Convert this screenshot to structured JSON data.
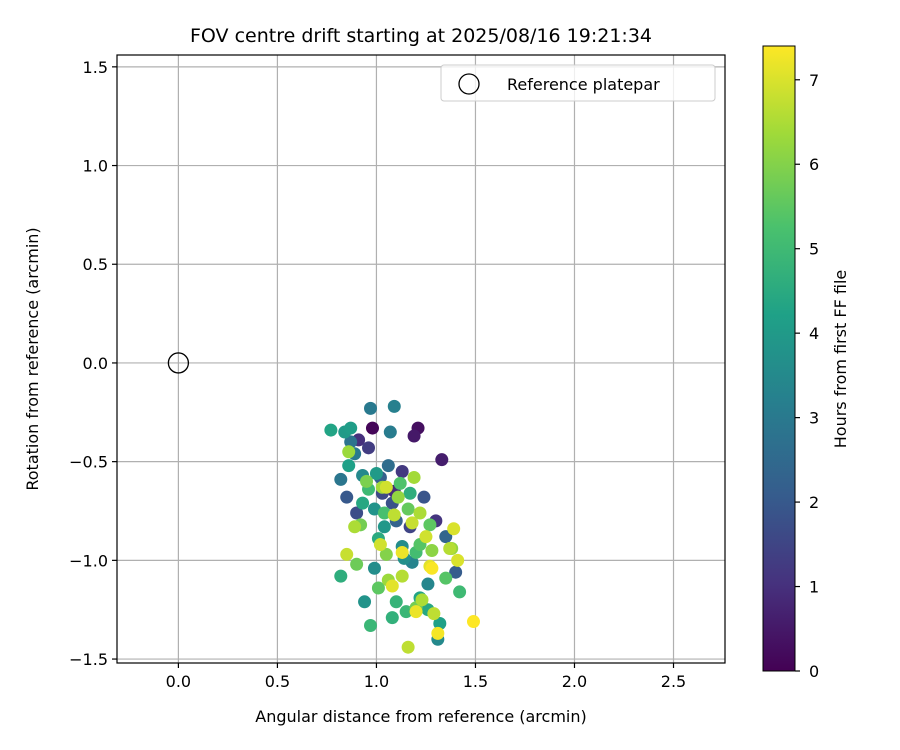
{
  "chart_data": {
    "type": "scatter",
    "title": "FOV centre drift starting at 2025/08/16 19:21:34",
    "xlabel": "Angular distance from reference (arcmin)",
    "ylabel": "Rotation from reference (arcmin)",
    "xlim": [
      -0.31,
      2.76
    ],
    "ylim": [
      -1.52,
      1.56
    ],
    "xticks": [
      0.0,
      0.5,
      1.0,
      1.5,
      2.0,
      2.5
    ],
    "xtick_labels": [
      "0.0",
      "0.5",
      "1.0",
      "1.5",
      "2.0",
      "2.5"
    ],
    "yticks": [
      -1.5,
      -1.0,
      -0.5,
      0.0,
      0.5,
      1.0,
      1.5
    ],
    "ytick_labels": [
      "−1.5",
      "−1.0",
      "−0.5",
      "0.0",
      "0.5",
      "1.0",
      "1.5"
    ],
    "grid": true,
    "colormap": "viridis",
    "colorbar": {
      "label": "Hours from first FF file",
      "range": [
        0,
        7.4
      ],
      "ticks": [
        0,
        1,
        2,
        3,
        4,
        5,
        6,
        7
      ],
      "tick_labels": [
        "0",
        "1",
        "2",
        "3",
        "4",
        "5",
        "6",
        "7"
      ]
    },
    "legend": {
      "placement": "upper-right",
      "entries": [
        {
          "label": "Reference platepar",
          "marker": "open-circle"
        }
      ]
    },
    "reference_point": {
      "x": 0.0,
      "y": 0.0
    },
    "points": [
      [
        0.98,
        -0.33,
        0.1
      ],
      [
        1.21,
        -0.33,
        0.3
      ],
      [
        1.19,
        -0.37,
        0.5
      ],
      [
        1.33,
        -0.49,
        0.6
      ],
      [
        0.91,
        -0.39,
        1.0
      ],
      [
        0.96,
        -0.43,
        1.3
      ],
      [
        1.09,
        -0.65,
        0.9
      ],
      [
        1.3,
        -0.8,
        1.1
      ],
      [
        1.03,
        -0.66,
        1.6
      ],
      [
        1.08,
        -0.71,
        1.8
      ],
      [
        1.13,
        -0.55,
        1.2
      ],
      [
        1.24,
        -0.68,
        1.9
      ],
      [
        0.85,
        -0.68,
        2.0
      ],
      [
        1.02,
        -0.58,
        2.2
      ],
      [
        1.35,
        -0.88,
        2.4
      ],
      [
        1.4,
        -1.06,
        2.1
      ],
      [
        1.06,
        -0.52,
        2.6
      ],
      [
        1.1,
        -0.8,
        2.3
      ],
      [
        0.9,
        -0.76,
        1.7
      ],
      [
        1.17,
        -0.83,
        1.5
      ],
      [
        0.87,
        -0.4,
        2.8
      ],
      [
        0.82,
        -0.59,
        2.9
      ],
      [
        0.89,
        -0.46,
        3.0
      ],
      [
        0.97,
        -0.23,
        3.0
      ],
      [
        1.09,
        -0.22,
        3.2
      ],
      [
        1.07,
        -0.35,
        3.1
      ],
      [
        0.93,
        -0.57,
        3.5
      ],
      [
        0.99,
        -0.74,
        3.8
      ],
      [
        1.13,
        -0.93,
        3.6
      ],
      [
        1.18,
        -1.01,
        3.3
      ],
      [
        1.26,
        -1.12,
        3.4
      ],
      [
        1.31,
        -1.4,
        3.5
      ],
      [
        1.14,
        -0.99,
        3.7
      ],
      [
        1.04,
        -0.83,
        3.9
      ],
      [
        0.99,
        -1.04,
        3.6
      ],
      [
        0.84,
        -0.35,
        4.0
      ],
      [
        0.77,
        -0.34,
        4.3
      ],
      [
        0.87,
        -0.33,
        4.1
      ],
      [
        0.86,
        -0.52,
        4.2
      ],
      [
        0.93,
        -0.71,
        4.4
      ],
      [
        1.0,
        -0.56,
        4.0
      ],
      [
        1.01,
        -0.89,
        4.5
      ],
      [
        1.17,
        -0.66,
        4.6
      ],
      [
        1.22,
        -1.19,
        4.3
      ],
      [
        1.26,
        -1.25,
        4.4
      ],
      [
        1.08,
        -1.29,
        4.7
      ],
      [
        1.32,
        -1.32,
        4.2
      ],
      [
        0.94,
        -1.21,
        3.8
      ],
      [
        0.82,
        -1.08,
        4.6
      ],
      [
        0.97,
        -1.33,
        4.9
      ],
      [
        1.42,
        -1.16,
        5.0
      ],
      [
        1.1,
        -1.21,
        4.8
      ],
      [
        1.15,
        -1.26,
        4.9
      ],
      [
        1.2,
        -0.96,
        5.1
      ],
      [
        0.96,
        -0.64,
        5.0
      ],
      [
        1.04,
        -0.76,
        5.2
      ],
      [
        1.12,
        -0.61,
        5.3
      ],
      [
        1.22,
        -0.92,
        5.4
      ],
      [
        1.27,
        -0.82,
        5.5
      ],
      [
        1.16,
        -0.74,
        5.6
      ],
      [
        1.35,
        -1.09,
        5.4
      ],
      [
        0.9,
        -1.02,
        5.7
      ],
      [
        0.92,
        -0.82,
        5.8
      ],
      [
        1.01,
        -1.14,
        5.5
      ],
      [
        0.95,
        -0.6,
        5.9
      ],
      [
        1.05,
        -0.97,
        6.0
      ],
      [
        1.2,
        -1.24,
        5.8
      ],
      [
        1.28,
        -0.95,
        6.1
      ],
      [
        1.38,
        -0.94,
        6.2
      ],
      [
        0.86,
        -0.45,
        6.3
      ],
      [
        1.03,
        -0.63,
        6.4
      ],
      [
        1.11,
        -0.68,
        6.2
      ],
      [
        1.19,
        -0.58,
        6.4
      ],
      [
        0.89,
        -0.83,
        6.5
      ],
      [
        1.06,
        -1.1,
        6.3
      ],
      [
        1.13,
        -1.08,
        6.6
      ],
      [
        1.23,
        -1.2,
        6.5
      ],
      [
        1.29,
        -1.27,
        6.7
      ],
      [
        1.37,
        -0.94,
        6.6
      ],
      [
        0.85,
        -0.97,
        6.8
      ],
      [
        1.02,
        -0.92,
        6.9
      ],
      [
        1.09,
        -0.77,
        6.7
      ],
      [
        1.18,
        -0.81,
        6.8
      ],
      [
        1.25,
        -0.88,
        6.9
      ],
      [
        1.41,
        -1.0,
        7.0
      ],
      [
        1.27,
        -1.03,
        7.1
      ],
      [
        1.16,
        -1.44,
        6.7
      ],
      [
        1.31,
        -1.37,
        7.3
      ],
      [
        1.2,
        -1.26,
        7.2
      ],
      [
        1.49,
        -1.31,
        7.4
      ],
      [
        1.39,
        -0.84,
        7.0
      ],
      [
        1.08,
        -1.13,
        7.1
      ],
      [
        1.28,
        -1.04,
        7.35
      ],
      [
        1.13,
        -0.96,
        7.2
      ],
      [
        1.05,
        -0.63,
        6.9
      ],
      [
        1.22,
        -0.76,
        6.5
      ]
    ]
  }
}
